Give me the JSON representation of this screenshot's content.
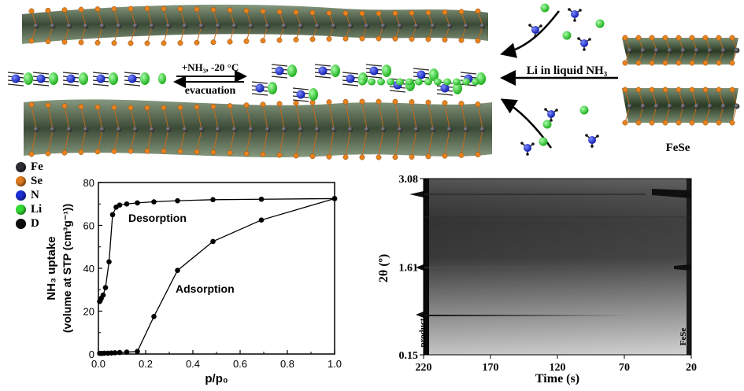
{
  "legend": {
    "items": [
      {
        "symbol": "Fe",
        "color": "#2e2e34"
      },
      {
        "symbol": "Se",
        "color": "#e07a1e"
      },
      {
        "symbol": "N",
        "color": "#1a2ed4"
      },
      {
        "symbol": "Li",
        "color": "#33dd33"
      },
      {
        "symbol": "D",
        "color": "#0d0d0d"
      }
    ]
  },
  "scheme": {
    "arrow_top_label": "+NH₃, -20 °C",
    "arrow_bottom_label": "evacuation",
    "li_label": "Li in liquid NH₃",
    "fese_label": "FeSe"
  },
  "chart_data": [
    {
      "type": "line",
      "xlabel": "p/p₀",
      "ylabel_line1": "NH₃ uptake",
      "ylabel_line2": "(volume at STP (cm³g⁻¹))",
      "xlim": [
        0.0,
        1.0
      ],
      "ylim": [
        0,
        80
      ],
      "x_ticks": [
        "0.0",
        "0.2",
        "0.4",
        "0.6",
        "0.8",
        "1.0"
      ],
      "y_ticks": [
        "0",
        "20",
        "40",
        "60",
        "80"
      ],
      "annotations": [
        "Desorption",
        "Adsorption"
      ],
      "series": [
        {
          "name": "Adsorption",
          "x": [
            0.005,
            0.015,
            0.025,
            0.04,
            0.055,
            0.07,
            0.09,
            0.12,
            0.165,
            0.235,
            0.335,
            0.485,
            0.69,
            1.0
          ],
          "y": [
            0.3,
            0.3,
            0.4,
            0.4,
            0.5,
            0.6,
            0.7,
            0.9,
            1.2,
            17.5,
            39,
            52.5,
            62.5,
            72.5
          ]
        },
        {
          "name": "Desorption",
          "x": [
            1.0,
            0.69,
            0.485,
            0.335,
            0.235,
            0.165,
            0.12,
            0.09,
            0.075,
            0.06,
            0.045,
            0.03,
            0.02,
            0.012,
            0.008,
            0.005
          ],
          "y": [
            72.5,
            72.2,
            72,
            71.5,
            71,
            70.5,
            70,
            69.5,
            68.5,
            65,
            43,
            31,
            27.5,
            26,
            25,
            24.5
          ]
        }
      ]
    },
    {
      "type": "heatmap",
      "xlabel": "Time (s)",
      "ylabel": "2θ (º)",
      "x_ticks": [
        "220",
        "170",
        "120",
        "70",
        "20"
      ],
      "y_ticks": [
        "3.08",
        "1.61",
        "0.15"
      ],
      "xlim": [
        220,
        20
      ],
      "ylim": [
        0.15,
        3.08
      ],
      "labels": [
        "product",
        "FeSe"
      ]
    }
  ]
}
